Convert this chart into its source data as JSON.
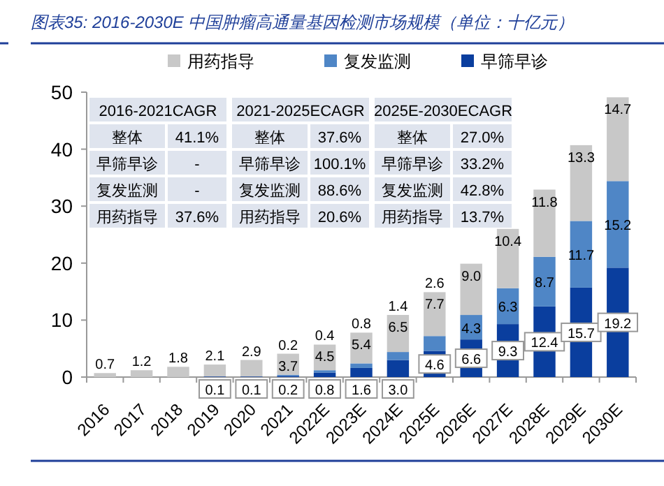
{
  "chart_data": {
    "type": "bar",
    "stacked": true,
    "title": "图表35: 2016-2030E 中国肿瘤高通量基因检测市场规模（单位：十亿元）",
    "categories": [
      "2016",
      "2017",
      "2018",
      "2019",
      "2020",
      "2021",
      "2022E",
      "2023E",
      "2024E",
      "2025E",
      "2026E",
      "2027E",
      "2028E",
      "2029E",
      "2030E"
    ],
    "series": [
      {
        "name": "早筛早诊",
        "color": "#0a3e9e",
        "values": [
          null,
          null,
          null,
          0.1,
          0.1,
          0.2,
          0.8,
          1.6,
          3.0,
          4.6,
          6.6,
          9.3,
          12.4,
          15.7,
          19.2
        ],
        "value_labels": [
          null,
          null,
          null,
          "0.1",
          "0.1",
          "0.2",
          "0.8",
          "1.6",
          "3.0",
          "4.6",
          "6.6",
          "9.3",
          "12.4",
          "15.7",
          "19.2"
        ]
      },
      {
        "name": "复发监测",
        "color": "#4f86c6",
        "values": [
          null,
          null,
          null,
          null,
          null,
          0.2,
          0.4,
          0.8,
          1.4,
          2.6,
          4.3,
          6.3,
          8.7,
          11.7,
          15.2
        ],
        "value_labels": [
          null,
          null,
          null,
          null,
          null,
          "0.2",
          "0.4",
          "0.8",
          "1.4",
          "2.6",
          "4.3",
          "6.3",
          "8.7",
          "11.7",
          "15.2"
        ]
      },
      {
        "name": "用药指导",
        "color": "#c8c8c8",
        "values": [
          0.7,
          1.2,
          1.8,
          2.1,
          2.9,
          3.7,
          4.5,
          5.4,
          6.5,
          7.7,
          9.0,
          10.4,
          11.8,
          13.3,
          14.7
        ],
        "value_labels": [
          "0.7",
          "1.2",
          "1.8",
          "2.1",
          "2.9",
          "3.7",
          "4.5",
          "5.4",
          "6.5",
          "7.7",
          "9.0",
          "10.4",
          "11.8",
          "13.3",
          "14.7"
        ]
      }
    ],
    "ylim": [
      0,
      50
    ],
    "yticks": [
      0,
      10,
      20,
      30,
      40,
      50
    ],
    "grid": false,
    "legend": "top",
    "annotations": [
      "2016-2021CAGR",
      "整体",
      "41.1%",
      "早筛早诊",
      "-",
      "复发监测",
      "-",
      "用药指导",
      "37.6%",
      "2021-2025ECAGR",
      "整体",
      "37.6%",
      "早筛早诊",
      "100.1%",
      "复发监测",
      "88.6%",
      "用药指导",
      "20.6%",
      "2025E-2030ECAGR",
      "整体",
      "27.0%",
      "早筛早诊",
      "33.2%",
      "复发监测",
      "42.8%",
      "用药指导",
      "13.7%"
    ]
  }
}
